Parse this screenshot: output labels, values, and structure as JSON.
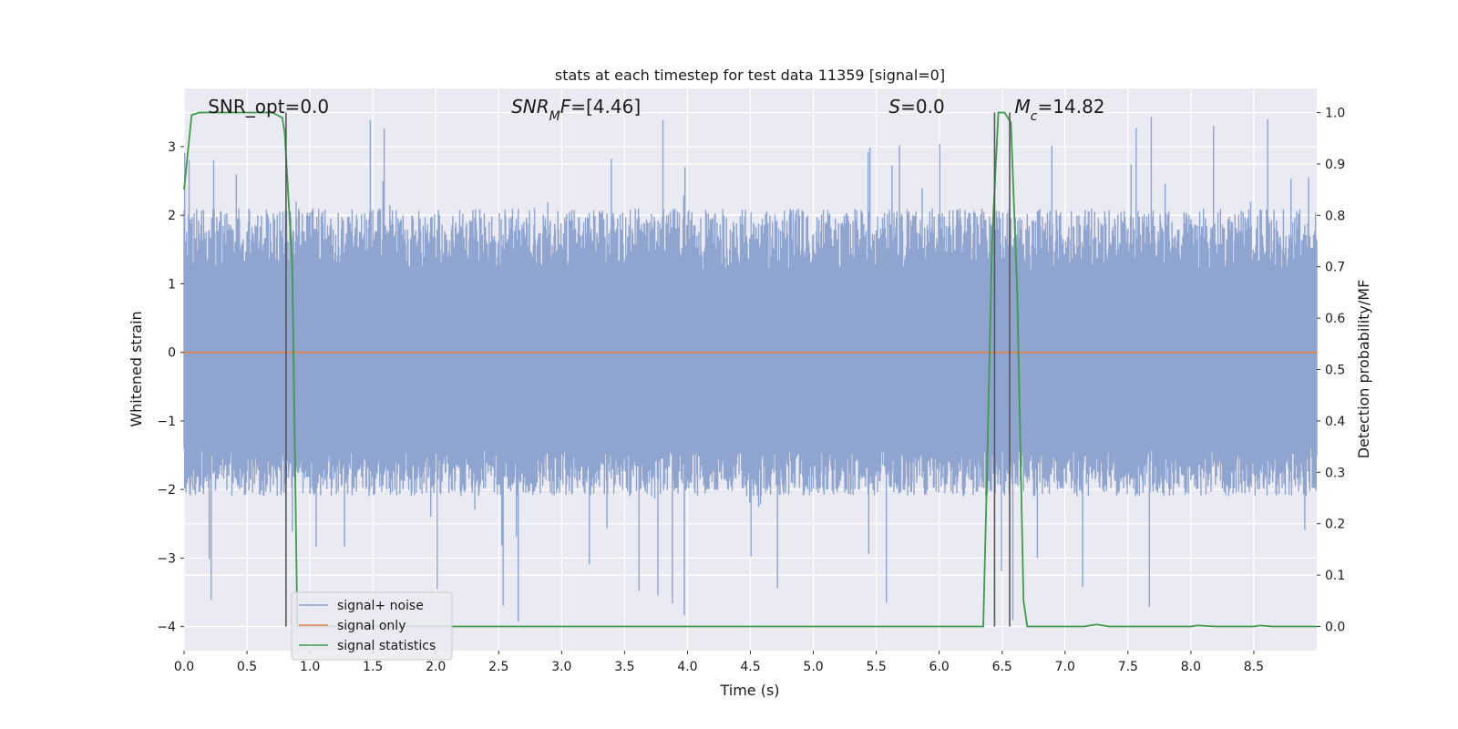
{
  "chart_data": {
    "type": "line",
    "title": "stats at each timestep for test data 11359 [signal=0]",
    "xlabel": "Time (s)",
    "ylabel": "Whitened strain",
    "ylabel_right": "Detection probability/MF",
    "xlim": [
      0.0,
      9.0
    ],
    "ylim": [
      -4.35,
      3.85
    ],
    "ylim_right": [
      -0.047,
      1.047
    ],
    "x_ticks": [
      0.0,
      0.5,
      1.0,
      1.5,
      2.0,
      2.5,
      3.0,
      3.5,
      4.0,
      4.5,
      5.0,
      5.5,
      6.0,
      6.5,
      7.0,
      7.5,
      8.0,
      8.5
    ],
    "x_tick_labels": [
      "0.0",
      "0.5",
      "1.0",
      "1.5",
      "2.0",
      "2.5",
      "3.0",
      "3.5",
      "4.0",
      "4.5",
      "5.0",
      "5.5",
      "6.0",
      "6.5",
      "7.0",
      "7.5",
      "8.0",
      "8.5"
    ],
    "y_ticks": [
      -4,
      -3,
      -2,
      -1,
      0,
      1,
      2,
      3
    ],
    "y_tick_labels": [
      "−4",
      "−3",
      "−2",
      "−1",
      "0",
      "1",
      "2",
      "3"
    ],
    "y_ticks_right": [
      0.0,
      0.1,
      0.2,
      0.3,
      0.4,
      0.5,
      0.6,
      0.7,
      0.8,
      0.9,
      1.0
    ],
    "y_tick_labels_right": [
      "0.0",
      "0.1",
      "0.2",
      "0.3",
      "0.4",
      "0.5",
      "0.6",
      "0.7",
      "0.8",
      "0.9",
      "1.0"
    ],
    "annotations": [
      {
        "id": "snr-opt",
        "x": 0.19,
        "text_parts": [
          {
            "t": "SNR_opt=0.0",
            "i": false
          }
        ]
      },
      {
        "id": "snr-mf",
        "x": 2.6,
        "text_parts": [
          {
            "t": "SNR",
            "i": true
          },
          {
            "t": "M",
            "i": true,
            "sub": true
          },
          {
            "t": "F",
            "i": true
          },
          {
            "t": "=[4.46]",
            "i": false
          }
        ]
      },
      {
        "id": "s-stat",
        "x": 5.6,
        "text_parts": [
          {
            "t": "S",
            "i": true
          },
          {
            "t": "=0.0",
            "i": false
          }
        ]
      },
      {
        "id": "mc",
        "x": 6.6,
        "text_parts": [
          {
            "t": "M",
            "i": true
          },
          {
            "t": "c",
            "i": true,
            "sub": true
          },
          {
            "t": "=14.82",
            "i": false
          }
        ]
      }
    ],
    "vlines": [
      0.81,
      6.44,
      6.56
    ],
    "vline_range_right": [
      0.0,
      1.0
    ],
    "series": [
      {
        "name": "signal+ noise",
        "color": "#8fa4ce",
        "kind": "noise",
        "axis": "left",
        "n_points": 1800,
        "envelope": {
          "typical_max": 2.1,
          "typical_min": -2.1,
          "peak_max": 3.5,
          "peak_min": -4.0,
          "core_max": 1.2,
          "core_min": -1.4
        }
      },
      {
        "name": "signal only",
        "color": "#dd8452",
        "kind": "line",
        "axis": "left",
        "x": [
          0.0,
          9.0
        ],
        "y": [
          0.0,
          0.0
        ]
      },
      {
        "name": "signal statistics",
        "color": "#3e9b4a",
        "kind": "line",
        "axis": "right",
        "x": [
          0.0,
          0.06,
          0.12,
          0.25,
          0.5,
          0.7,
          0.78,
          0.8,
          0.86,
          0.9,
          1.5,
          3.0,
          5.0,
          6.35,
          6.38,
          6.42,
          6.47,
          6.52,
          6.57,
          6.62,
          6.67,
          6.7,
          7.0,
          7.15,
          7.25,
          7.35,
          7.5,
          8.0,
          8.05,
          8.2,
          8.5,
          8.55,
          8.65,
          9.0
        ],
        "y": [
          0.85,
          0.995,
          1.0,
          1.0,
          1.0,
          1.0,
          0.99,
          0.96,
          0.7,
          0.0,
          0.0,
          0.0,
          0.0,
          0.0,
          0.3,
          0.75,
          1.0,
          1.0,
          0.98,
          0.65,
          0.05,
          0.0,
          0.0,
          0.0,
          0.004,
          0.0,
          0.0,
          0.0,
          0.002,
          0.0,
          0.0,
          0.002,
          0.0,
          0.0
        ]
      }
    ],
    "legend": {
      "placement": "lower-left",
      "entries": [
        "signal+ noise",
        "signal only",
        "signal statistics"
      ]
    },
    "grid": true
  }
}
